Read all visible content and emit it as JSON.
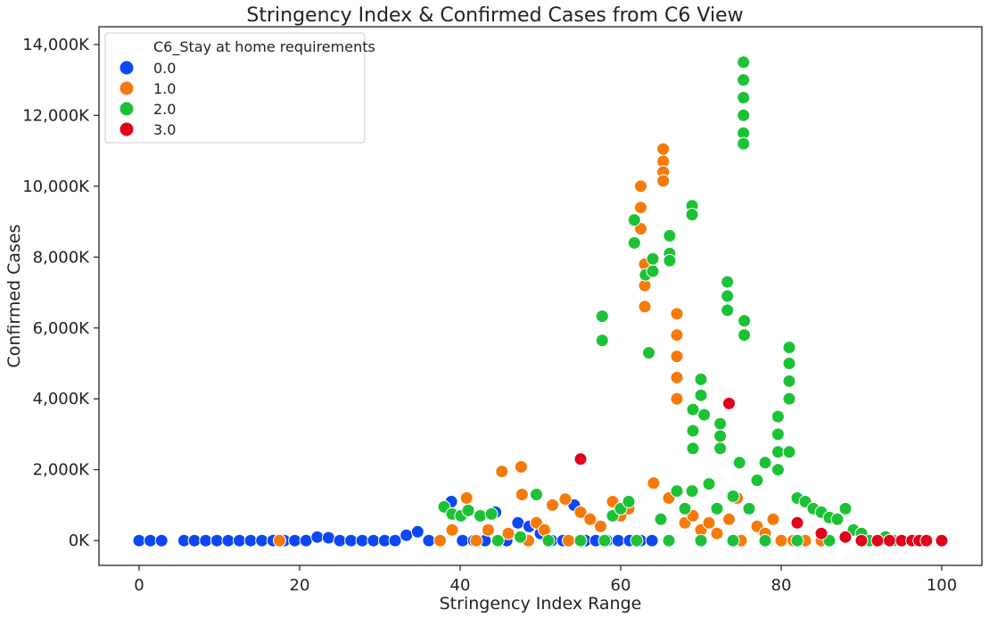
{
  "chart_data": {
    "type": "scatter",
    "title": "Stringency Index & Confirmed Cases from C6 View",
    "xlabel": "Stringency Index Range",
    "ylabel": "Confirmed Cases",
    "xlim": [
      -5,
      105
    ],
    "ylim": [
      -700,
      14500
    ],
    "x_ticks": [
      0,
      20,
      40,
      60,
      80,
      100
    ],
    "x_tick_labels": [
      "0",
      "20",
      "40",
      "60",
      "80",
      "100"
    ],
    "y_ticks": [
      0,
      2000,
      4000,
      6000,
      8000,
      10000,
      12000,
      14000
    ],
    "y_tick_labels": [
      "0K",
      "2,000K",
      "4,000K",
      "6,000K",
      "8,000K",
      "10,000K",
      "12,000K",
      "14,000K"
    ],
    "grid": false,
    "legend_placement": "top-left",
    "legend_title": "C6_Stay at home requirements",
    "series": [
      {
        "name": "0.0",
        "color": "#0d47f5",
        "points": [
          [
            0,
            0
          ],
          [
            1.4,
            0
          ],
          [
            2.8,
            0
          ],
          [
            5.6,
            0
          ],
          [
            6.9,
            0
          ],
          [
            8.3,
            0
          ],
          [
            9.7,
            0
          ],
          [
            11.1,
            0
          ],
          [
            12.5,
            0
          ],
          [
            13.9,
            0
          ],
          [
            15.3,
            0
          ],
          [
            16.7,
            0
          ],
          [
            18.1,
            0
          ],
          [
            19.4,
            0
          ],
          [
            20.8,
            0
          ],
          [
            22.2,
            100
          ],
          [
            23.6,
            80
          ],
          [
            25,
            0
          ],
          [
            26.4,
            0
          ],
          [
            27.8,
            0
          ],
          [
            29.2,
            0
          ],
          [
            30.6,
            0
          ],
          [
            31.9,
            0
          ],
          [
            33.3,
            150
          ],
          [
            34.7,
            250
          ],
          [
            36.1,
            0
          ],
          [
            37.5,
            0
          ],
          [
            38.9,
            1100
          ],
          [
            40.3,
            0
          ],
          [
            41.7,
            0
          ],
          [
            43.1,
            0
          ],
          [
            44.4,
            800
          ],
          [
            45.8,
            0
          ],
          [
            47.2,
            500
          ],
          [
            48.6,
            400
          ],
          [
            50,
            200
          ],
          [
            51.4,
            0
          ],
          [
            52.8,
            0
          ],
          [
            54.2,
            1000
          ],
          [
            55.6,
            0
          ],
          [
            56.9,
            0
          ],
          [
            58.3,
            0
          ],
          [
            59.7,
            0
          ],
          [
            61.1,
            0
          ],
          [
            62.5,
            0
          ],
          [
            63.9,
            0
          ]
        ]
      },
      {
        "name": "1.0",
        "color": "#f57a0a",
        "points": [
          [
            17.5,
            0
          ],
          [
            37.5,
            0
          ],
          [
            39,
            300
          ],
          [
            40.8,
            1200
          ],
          [
            42,
            0
          ],
          [
            43.5,
            300
          ],
          [
            45.2,
            1950
          ],
          [
            46,
            200
          ],
          [
            47.6,
            2080
          ],
          [
            47.7,
            1300
          ],
          [
            48.5,
            0
          ],
          [
            49.5,
            500
          ],
          [
            50.5,
            300
          ],
          [
            51.5,
            1000
          ],
          [
            53.1,
            1170
          ],
          [
            53.5,
            0
          ],
          [
            55,
            800
          ],
          [
            56.2,
            600
          ],
          [
            57.5,
            400
          ],
          [
            59,
            1100
          ],
          [
            60,
            700
          ],
          [
            61,
            900
          ],
          [
            62.5,
            10000
          ],
          [
            62.5,
            9400
          ],
          [
            62.5,
            8800
          ],
          [
            63,
            7800
          ],
          [
            63,
            7200
          ],
          [
            63,
            6600
          ],
          [
            64.1,
            1620
          ],
          [
            65.3,
            11050
          ],
          [
            65.3,
            10700
          ],
          [
            65.3,
            10400
          ],
          [
            65.3,
            10150
          ],
          [
            66,
            1200
          ],
          [
            67,
            6400
          ],
          [
            67,
            5800
          ],
          [
            67,
            5200
          ],
          [
            67,
            4600
          ],
          [
            67,
            4000
          ],
          [
            68,
            500
          ],
          [
            69,
            700
          ],
          [
            70,
            300
          ],
          [
            71,
            500
          ],
          [
            72,
            200
          ],
          [
            73.5,
            600
          ],
          [
            74.5,
            1200
          ],
          [
            75,
            0
          ],
          [
            77,
            400
          ],
          [
            78,
            200
          ],
          [
            79,
            600
          ],
          [
            80,
            0
          ],
          [
            81.5,
            0
          ],
          [
            83,
            0
          ],
          [
            85,
            0
          ]
        ]
      },
      {
        "name": "2.0",
        "color": "#1cc236",
        "points": [
          [
            38,
            950
          ],
          [
            39,
            750
          ],
          [
            40.1,
            700
          ],
          [
            41,
            850
          ],
          [
            42.5,
            700
          ],
          [
            43.9,
            750
          ],
          [
            44.7,
            0
          ],
          [
            47.5,
            100
          ],
          [
            49.5,
            1300
          ],
          [
            51,
            0
          ],
          [
            55,
            0
          ],
          [
            57.7,
            6330
          ],
          [
            57.7,
            5650
          ],
          [
            59,
            700
          ],
          [
            60,
            900
          ],
          [
            61,
            1100
          ],
          [
            61.7,
            9050
          ],
          [
            61.7,
            8400
          ],
          [
            63.1,
            7500
          ],
          [
            63.5,
            5300
          ],
          [
            64,
            7950
          ],
          [
            64,
            7600
          ],
          [
            65,
            600
          ],
          [
            66.1,
            8600
          ],
          [
            66.1,
            8100
          ],
          [
            66.1,
            7900
          ],
          [
            67,
            1400
          ],
          [
            68,
            900
          ],
          [
            68.9,
            1400
          ],
          [
            68.9,
            9450
          ],
          [
            68.9,
            9200
          ],
          [
            69,
            3700
          ],
          [
            69,
            3100
          ],
          [
            69,
            2600
          ],
          [
            70,
            4550
          ],
          [
            70,
            4100
          ],
          [
            70.4,
            3550
          ],
          [
            71,
            1600
          ],
          [
            72,
            900
          ],
          [
            72.4,
            3300
          ],
          [
            72.4,
            2950
          ],
          [
            72.4,
            2600
          ],
          [
            73.3,
            7300
          ],
          [
            73.3,
            6900
          ],
          [
            73.3,
            6500
          ],
          [
            74,
            1250
          ],
          [
            74.8,
            2200
          ],
          [
            75.3,
            13500
          ],
          [
            75.3,
            13000
          ],
          [
            75.3,
            12500
          ],
          [
            75.3,
            12000
          ],
          [
            75.3,
            11500
          ],
          [
            75.3,
            11200
          ],
          [
            75.4,
            6200
          ],
          [
            75.4,
            5800
          ],
          [
            76,
            900
          ],
          [
            77,
            1700
          ],
          [
            78,
            2200
          ],
          [
            79.6,
            3500
          ],
          [
            79.6,
            3000
          ],
          [
            79.6,
            2500
          ],
          [
            79.6,
            2000
          ],
          [
            81,
            5450
          ],
          [
            81,
            5000
          ],
          [
            81,
            4500
          ],
          [
            81,
            4000
          ],
          [
            81,
            2500
          ],
          [
            82,
            1200
          ],
          [
            83,
            1100
          ],
          [
            84,
            900
          ],
          [
            85,
            800
          ],
          [
            86,
            650
          ],
          [
            87,
            600
          ],
          [
            88,
            900
          ],
          [
            89,
            300
          ],
          [
            90,
            200
          ],
          [
            91,
            0
          ],
          [
            92,
            0
          ],
          [
            93,
            100
          ],
          [
            94,
            0
          ],
          [
            96.5,
            0
          ],
          [
            55,
            0
          ],
          [
            58,
            0
          ],
          [
            62,
            0
          ],
          [
            66,
            0
          ],
          [
            70,
            0
          ],
          [
            74,
            0
          ],
          [
            78,
            0
          ],
          [
            82,
            0
          ],
          [
            86,
            0
          ],
          [
            90,
            0
          ]
        ]
      },
      {
        "name": "3.0",
        "color": "#e3001b",
        "points": [
          [
            55,
            2300
          ],
          [
            73.5,
            3870
          ],
          [
            82,
            500
          ],
          [
            85,
            200
          ],
          [
            88,
            100
          ],
          [
            90,
            0
          ],
          [
            92,
            0
          ],
          [
            93.5,
            0
          ],
          [
            95,
            0
          ],
          [
            96.3,
            0
          ],
          [
            97.2,
            0
          ],
          [
            98.1,
            0
          ],
          [
            100,
            0
          ]
        ]
      }
    ]
  }
}
